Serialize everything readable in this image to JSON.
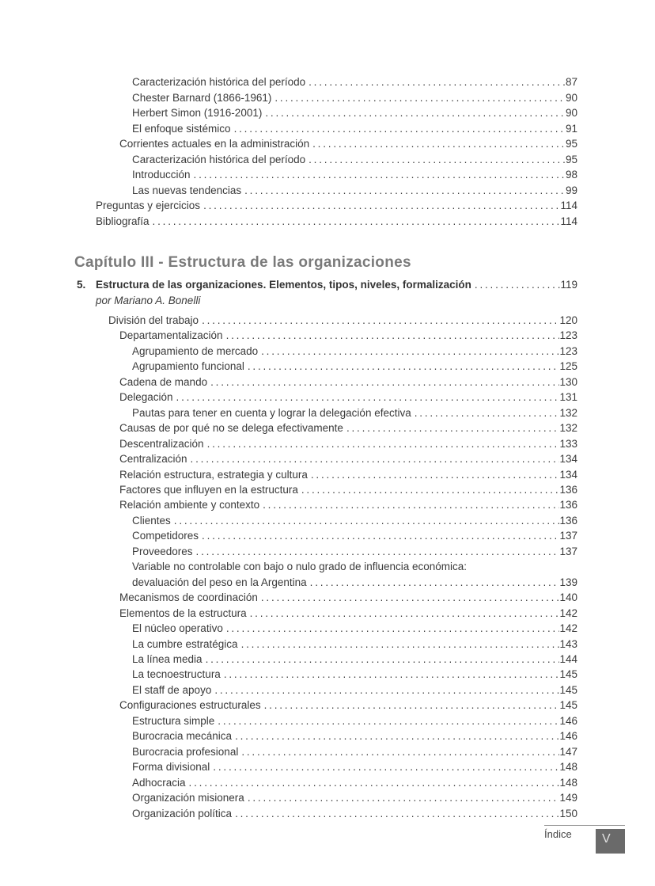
{
  "toc_top": {
    "entries": [
      {
        "label": "Caracterización histórica del período",
        "page": "87",
        "level": 4
      },
      {
        "label": "Chester Barnard (1866-1961)",
        "page": "90",
        "level": 4
      },
      {
        "label": "Herbert Simon (1916-2001)",
        "page": "90",
        "level": 4
      },
      {
        "label": "El enfoque sistémico",
        "page": "91",
        "level": 4
      },
      {
        "label": "Corrientes actuales en la administración",
        "page": "95",
        "level": 3
      },
      {
        "label": "Caracterización histórica del período",
        "page": "95",
        "level": 4
      },
      {
        "label": "Introducción",
        "page": "98",
        "level": 4
      },
      {
        "label": "Las nuevas tendencias",
        "page": "99",
        "level": 4
      },
      {
        "label": "Preguntas y ejercicios",
        "page": "114",
        "level": 1
      },
      {
        "label": "Bibliografía",
        "page": "114",
        "level": 1
      }
    ]
  },
  "chapter": {
    "heading": "Capítulo III - Estructura de las organizaciones",
    "item_number": "5.",
    "item_title": "Estructura de las organizaciones. Elementos, tipos, niveles, formalización",
    "item_page": "119",
    "author": "por Mariano A. Bonelli",
    "entries": [
      {
        "label": "División del trabajo",
        "page": "120",
        "level": 2
      },
      {
        "label": "Departamentalización",
        "page": "123",
        "level": 3
      },
      {
        "label": "Agrupamiento de mercado",
        "page": "123",
        "level": 4
      },
      {
        "label": "Agrupamiento funcional",
        "page": "125",
        "level": 4
      },
      {
        "label": "Cadena de mando",
        "page": "130",
        "level": 3
      },
      {
        "label": "Delegación",
        "page": "131",
        "level": 3
      },
      {
        "label": "Pautas para tener en cuenta y lograr la delegación efectiva",
        "page": "132",
        "level": 4
      },
      {
        "label": "Causas de por qué no se delega efectivamente",
        "page": "132",
        "level": 3
      },
      {
        "label": "Descentralización",
        "page": "133",
        "level": 3
      },
      {
        "label": "Centralización",
        "page": "134",
        "level": 3
      },
      {
        "label": "Relación estructura, estrategia y cultura",
        "page": "134",
        "level": 3
      },
      {
        "label": "Factores que influyen en la estructura",
        "page": "136",
        "level": 3
      },
      {
        "label": "Relación ambiente y contexto",
        "page": "136",
        "level": 3
      },
      {
        "label": "Clientes",
        "page": "136",
        "level": 4
      },
      {
        "label": "Competidores",
        "page": "137",
        "level": 4
      },
      {
        "label": "Proveedores",
        "page": "137",
        "level": 4
      },
      {
        "label": "Variable no controlable con bajo o nulo grado de influencia económica:",
        "page": "",
        "level": 4,
        "dots": false
      },
      {
        "label": "devaluación del peso en la Argentina",
        "page": "139",
        "level": 4
      },
      {
        "label": "Mecanismos de coordinación",
        "page": "140",
        "level": 3
      },
      {
        "label": "Elementos de la estructura",
        "page": "142",
        "level": 3
      },
      {
        "label": "El núcleo operativo",
        "page": "142",
        "level": 4
      },
      {
        "label": "La cumbre estratégica",
        "page": "143",
        "level": 4
      },
      {
        "label": "La línea media",
        "page": "144",
        "level": 4
      },
      {
        "label": "La tecnoestructura",
        "page": "145",
        "level": 4
      },
      {
        "label": "El staff de apoyo",
        "page": "145",
        "level": 4
      },
      {
        "label": "Configuraciones estructurales",
        "page": "145",
        "level": 3
      },
      {
        "label": "Estructura simple",
        "page": "146",
        "level": 4
      },
      {
        "label": "Burocracia mecánica",
        "page": "146",
        "level": 4
      },
      {
        "label": "Burocracia profesional",
        "page": "147",
        "level": 4
      },
      {
        "label": "Forma divisional",
        "page": "148",
        "level": 4
      },
      {
        "label": "Adhocracia",
        "page": "148",
        "level": 4
      },
      {
        "label": "Organización misionera",
        "page": "149",
        "level": 4
      },
      {
        "label": "Organización política",
        "page": "150",
        "level": 4
      }
    ]
  },
  "footer": {
    "label": "Índice",
    "page_number": "V"
  },
  "colors": {
    "body_text": "#3a3a3a",
    "heading_gray": "#7a7a7a",
    "footer_box_gray": "#6a6a6a",
    "footer_page_text": "#e0e0e0",
    "rule_gray": "#999999"
  }
}
